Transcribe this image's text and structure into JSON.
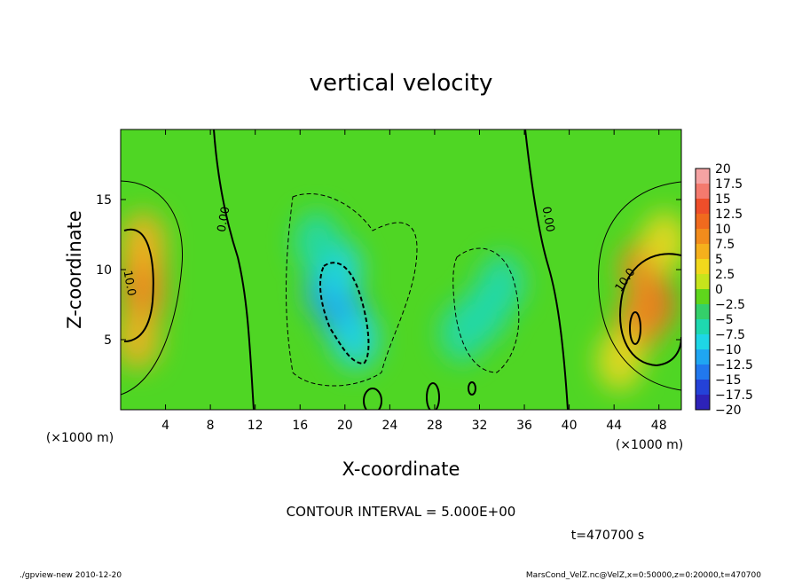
{
  "chart_data": {
    "type": "heatmap",
    "title": "vertical velocity",
    "xlabel": "X-coordinate",
    "ylabel": "Z-coordinate",
    "x_unit": "(×1000 m)",
    "y_unit": "(×1000 m)",
    "xlim": [
      0,
      50
    ],
    "ylim": [
      0,
      20
    ],
    "x_ticks": [
      4,
      8,
      12,
      16,
      20,
      24,
      28,
      32,
      36,
      40,
      44,
      48
    ],
    "y_ticks": [
      5,
      10,
      15
    ],
    "colorbar": {
      "levels": [
        20,
        17.5,
        15,
        12.5,
        10,
        7.5,
        5,
        2.5,
        0,
        -2.5,
        -5,
        -7.5,
        -10,
        -12.5,
        -15,
        -17.5,
        -20
      ],
      "labels": [
        "20",
        "17.5",
        "15",
        "12.5",
        "10",
        "7.5",
        "5",
        "2.5",
        "0",
        "−2.5",
        "−5",
        "−7.5",
        "−10",
        "−12.5",
        "−15",
        "−17.5",
        "−20"
      ],
      "colors": [
        "#f5a3a3",
        "#f47a6e",
        "#ee4e2a",
        "#f06a1e",
        "#f28c1c",
        "#f5b01c",
        "#f1d81c",
        "#c6e41c",
        "#5fd61c",
        "#34d06a",
        "#1ed8b0",
        "#1ed6e6",
        "#1fa6f2",
        "#2178ee",
        "#2442d8",
        "#2d22b8",
        "#6a18b0"
      ]
    },
    "contour_labels": [
      "0.00",
      "0.00",
      "10.0",
      "10.0"
    ],
    "cells": [
      {
        "x": 2,
        "z": 8,
        "w": 11
      },
      {
        "x": 2,
        "z": 10,
        "w": 10
      },
      {
        "x": 2,
        "z": 12,
        "w": 8
      },
      {
        "x": 1.5,
        "z": 5,
        "w": 7
      },
      {
        "x": 18.5,
        "z": 8.5,
        "w": -10
      },
      {
        "x": 20,
        "z": 6.5,
        "w": -11
      },
      {
        "x": 19.5,
        "z": 10,
        "w": -8
      },
      {
        "x": 21,
        "z": 5,
        "w": -7
      },
      {
        "x": 17.5,
        "z": 12,
        "w": -5
      },
      {
        "x": 32.5,
        "z": 7,
        "w": -6
      },
      {
        "x": 34,
        "z": 9,
        "w": -5
      },
      {
        "x": 30.5,
        "z": 5.5,
        "w": -4
      },
      {
        "x": 47.5,
        "z": 7.5,
        "w": 13
      },
      {
        "x": 46,
        "z": 6,
        "w": 11
      },
      {
        "x": 46.5,
        "z": 10,
        "w": 9
      },
      {
        "x": 48.5,
        "z": 12,
        "w": 6
      },
      {
        "x": 44.5,
        "z": 3.5,
        "w": 5
      }
    ],
    "contour_interval": "CONTOUR INTERVAL = 5.000E+00",
    "time": "t=470700  s"
  },
  "footer": {
    "left": "./gpview-new  2010-12-20",
    "right": "MarsCond_VelZ.nc@VelZ,x=0:50000,z=0:20000,t=470700"
  }
}
